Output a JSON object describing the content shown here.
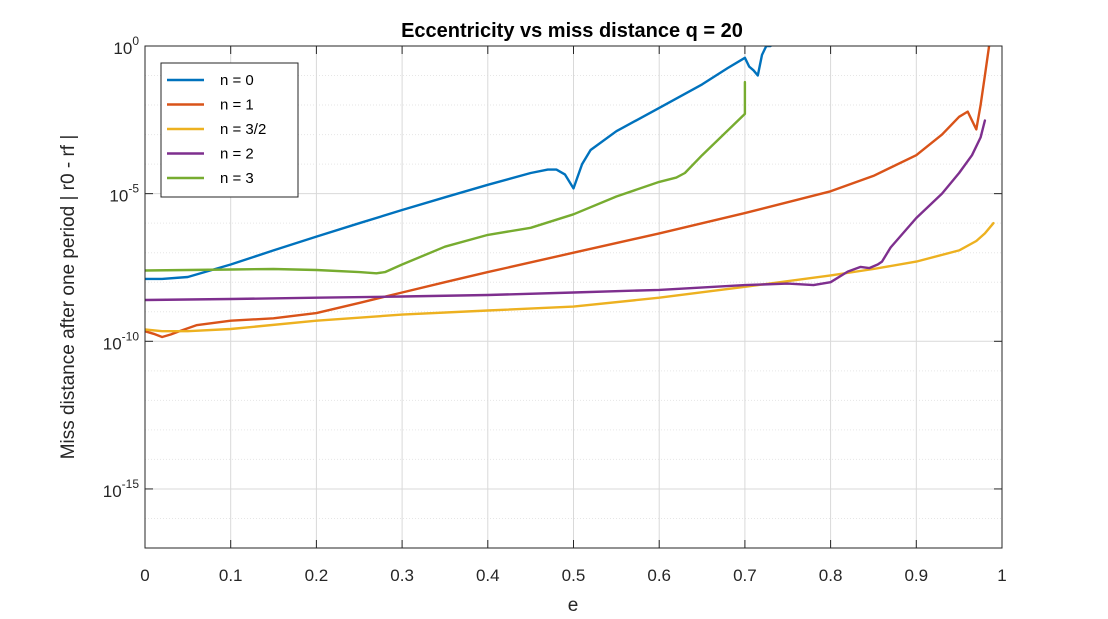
{
  "chart_data": {
    "type": "line",
    "title": "Eccentricity vs miss distance q = 20",
    "xlabel": "e",
    "ylabel": "Miss distance after one period | r0 - rf |",
    "xlim": [
      0,
      1
    ],
    "ylim": [
      1e-17,
      1
    ],
    "yscale": "log",
    "grid": true,
    "minor_grid": true,
    "legend_position": "top-left",
    "x_ticks": [
      {
        "value": 0,
        "label": "0"
      },
      {
        "value": 0.1,
        "label": "0.1"
      },
      {
        "value": 0.2,
        "label": "0.2"
      },
      {
        "value": 0.3,
        "label": "0.3"
      },
      {
        "value": 0.4,
        "label": "0.4"
      },
      {
        "value": 0.5,
        "label": "0.5"
      },
      {
        "value": 0.6,
        "label": "0.6"
      },
      {
        "value": 0.7,
        "label": "0.7"
      },
      {
        "value": 0.8,
        "label": "0.8"
      },
      {
        "value": 0.9,
        "label": "0.9"
      },
      {
        "value": 1,
        "label": "1"
      }
    ],
    "y_ticks": [
      {
        "value": 1,
        "base": "10",
        "exp": "0"
      },
      {
        "value": 1e-05,
        "base": "10",
        "exp": "-5"
      },
      {
        "value": 1e-10,
        "base": "10",
        "exp": "-10"
      },
      {
        "value": 1e-15,
        "base": "10",
        "exp": "-15"
      }
    ],
    "series": [
      {
        "name": "n = 0",
        "color": "#0072BD",
        "x": [
          0,
          0.02,
          0.05,
          0.1,
          0.15,
          0.2,
          0.25,
          0.3,
          0.35,
          0.4,
          0.45,
          0.47,
          0.48,
          0.49,
          0.5,
          0.51,
          0.52,
          0.55,
          0.6,
          0.65,
          0.68,
          0.7,
          0.705,
          0.71,
          0.715,
          0.72,
          0.725,
          0.73
        ],
        "y": [
          1.3e-08,
          1.3e-08,
          1.5e-08,
          4e-08,
          1.2e-07,
          3.5e-07,
          1e-06,
          2.8e-06,
          7.5e-06,
          2e-05,
          5e-05,
          6.5e-05,
          6.5e-05,
          4.5e-05,
          1.5e-05,
          0.0001,
          0.0003,
          0.0013,
          0.008,
          0.05,
          0.18,
          0.4,
          0.2,
          0.15,
          0.1,
          0.5,
          1,
          1
        ]
      },
      {
        "name": "n = 1",
        "color": "#D95319",
        "x": [
          0,
          0.01,
          0.02,
          0.03,
          0.04,
          0.06,
          0.1,
          0.15,
          0.2,
          0.25,
          0.3,
          0.35,
          0.4,
          0.5,
          0.6,
          0.7,
          0.8,
          0.85,
          0.9,
          0.93,
          0.95,
          0.96,
          0.965,
          0.97,
          0.975,
          0.98,
          0.985
        ],
        "y": [
          2.2e-10,
          1.8e-10,
          1.4e-10,
          1.7e-10,
          2.2e-10,
          3.5e-10,
          5e-10,
          6e-10,
          9e-10,
          2e-09,
          4.5e-09,
          1e-08,
          2.2e-08,
          1e-07,
          4.5e-07,
          2.2e-06,
          1.2e-05,
          4e-05,
          0.0002,
          0.001,
          0.004,
          0.006,
          0.003,
          0.0015,
          0.01,
          0.1,
          1
        ]
      },
      {
        "name": "n = 3/2",
        "color": "#EDB120",
        "x": [
          0,
          0.02,
          0.05,
          0.1,
          0.2,
          0.3,
          0.4,
          0.5,
          0.6,
          0.7,
          0.8,
          0.85,
          0.9,
          0.95,
          0.97,
          0.98,
          0.99
        ],
        "y": [
          2.5e-10,
          2.2e-10,
          2.2e-10,
          2.6e-10,
          5e-10,
          8e-10,
          1.1e-09,
          1.5e-09,
          3e-09,
          7e-09,
          1.7e-08,
          2.8e-08,
          5e-08,
          1.2e-07,
          2.5e-07,
          4.5e-07,
          1e-06
        ]
      },
      {
        "name": "n = 2",
        "color": "#7E2F8E",
        "x": [
          0,
          0.1,
          0.2,
          0.3,
          0.4,
          0.5,
          0.6,
          0.7,
          0.75,
          0.78,
          0.8,
          0.82,
          0.835,
          0.845,
          0.855,
          0.86,
          0.87,
          0.9,
          0.93,
          0.95,
          0.965,
          0.975,
          0.98
        ],
        "y": [
          2.5e-09,
          2.7e-09,
          3e-09,
          3.3e-09,
          3.7e-09,
          4.5e-09,
          5.5e-09,
          8e-09,
          9e-09,
          8e-09,
          1e-08,
          2.3e-08,
          3.3e-08,
          3e-08,
          4e-08,
          5e-08,
          1.5e-07,
          1.5e-06,
          1e-05,
          5e-05,
          0.0002,
          0.0008,
          0.003
        ]
      },
      {
        "name": "n = 3",
        "color": "#77AC30",
        "x": [
          0,
          0.05,
          0.1,
          0.15,
          0.2,
          0.25,
          0.27,
          0.28,
          0.3,
          0.35,
          0.4,
          0.45,
          0.5,
          0.55,
          0.6,
          0.62,
          0.63,
          0.65,
          0.7,
          0.7
        ],
        "y": [
          2.5e-08,
          2.6e-08,
          2.7e-08,
          2.8e-08,
          2.6e-08,
          2.2e-08,
          2e-08,
          2.2e-08,
          4e-08,
          1.6e-07,
          4e-07,
          7e-07,
          2e-06,
          8e-06,
          2.5e-05,
          3.5e-05,
          5e-05,
          0.0002,
          0.005,
          0.06
        ]
      }
    ]
  }
}
